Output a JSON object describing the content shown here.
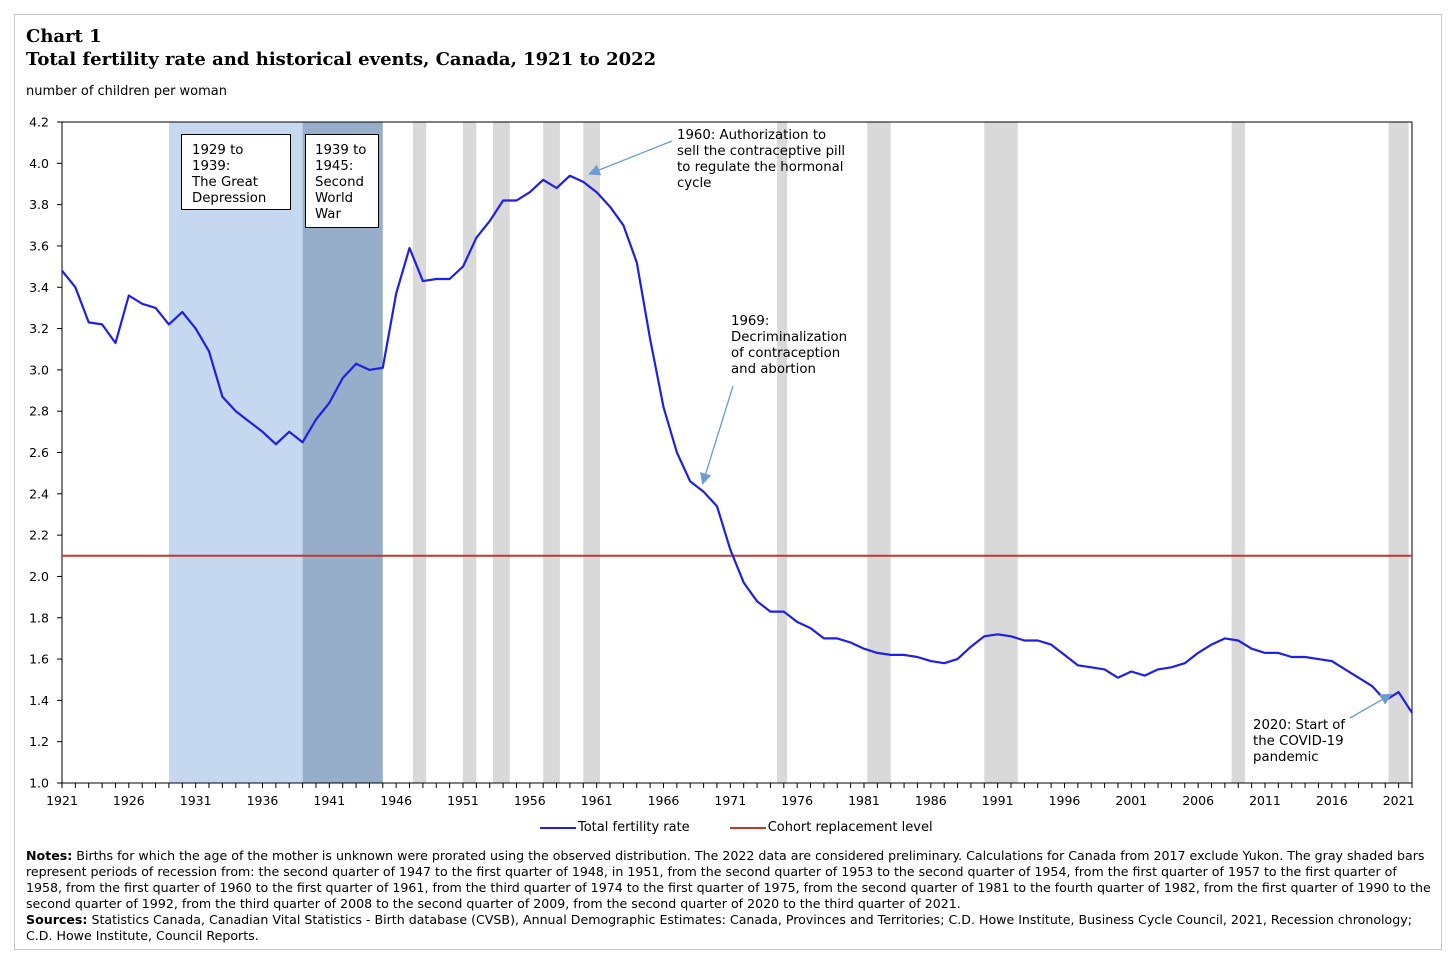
{
  "header": {
    "chart_label": "Chart 1",
    "title": "Total fertility rate and historical events, Canada, 1921 to 2022",
    "y_unit": "number of children per woman"
  },
  "legend": {
    "tfr_label": "Total fertility rate",
    "replacement_label": "Cohort replacement level"
  },
  "colors": {
    "tfr_line": "#1f1fe6",
    "replacement_line": "#c0392b",
    "depression_band": "#c6d8f0",
    "war_band": "#97aeca",
    "recession_bar": "#d9d9d9",
    "arrow": "#6f9ad2"
  },
  "annotations": {
    "depression": "1929 to\n1939:\nThe Great\nDepression",
    "war": "1939 to\n1945:\nSecond\nWorld\nWar",
    "pill": "1960: Authorization to\nsell the contraceptive pill\nto regulate the hormonal\ncycle",
    "decrim": "1969:\nDecriminalization\nof contraception\nand abortion",
    "covid": "2020: Start of\nthe COVID-19\npandemic"
  },
  "notes": {
    "notes_label": "Notes:",
    "notes_text": " Births for which the age of the mother is unknown were prorated using the observed distribution. The 2022 data are considered preliminary. Calculations for Canada from 2017 exclude Yukon. The gray shaded bars represent periods of recession from: the second quarter of 1947 to the first quarter of 1948, in 1951, from the second quarter of 1953 to the second quarter of 1954, from the first quarter of 1957 to the first quarter of 1958, from the first quarter of 1960 to the first quarter of 1961, from the third quarter of 1974 to the first quarter of 1975, from the second quarter of 1981 to the fourth quarter of 1982, from the first quarter of 1990 to the second quarter of 1992, from the third quarter of 2008 to the second quarter of 2009, from the second quarter of 2020 to the third quarter of 2021.",
    "sources_label": "Sources:",
    "sources_text": " Statistics Canada, Canadian Vital Statistics - Birth database (CVSB), Annual Demographic Estimates: Canada, Provinces and Territories; C.D. Howe Institute, Business Cycle Council, 2021, Recession chronology; C.D. Howe Institute, Council Reports."
  },
  "chart_data": {
    "type": "line",
    "title": "Total fertility rate and historical events, Canada, 1921 to 2022",
    "xlabel": "",
    "ylabel": "number of children per woman",
    "xlim": [
      1921,
      2022
    ],
    "ylim": [
      1.0,
      4.2
    ],
    "y_ticks": [
      1.0,
      1.2,
      1.4,
      1.6,
      1.8,
      2.0,
      2.2,
      2.4,
      2.6,
      2.8,
      3.0,
      3.2,
      3.4,
      3.6,
      3.8,
      4.0,
      4.2
    ],
    "y_tick_labels": [
      "1.0",
      "1.2",
      "1.4",
      "1.6",
      "1.8",
      "2.0",
      "2.2",
      "2.4",
      "2.6",
      "2.8",
      "3.0",
      "3.2",
      "3.4",
      "3.6",
      "3.8",
      "4.0",
      "4.2"
    ],
    "x_tick_labels": [
      "1921",
      "1926",
      "1931",
      "1936",
      "1941",
      "1946",
      "1951",
      "1956",
      "1961",
      "1966",
      "1971",
      "1976",
      "1981",
      "1986",
      "1991",
      "1996",
      "2001",
      "2006",
      "2011",
      "2016",
      "2021"
    ],
    "series": [
      {
        "name": "Total fertility rate",
        "x": [
          1921,
          1922,
          1923,
          1924,
          1925,
          1926,
          1927,
          1928,
          1929,
          1930,
          1931,
          1932,
          1933,
          1934,
          1935,
          1936,
          1937,
          1938,
          1939,
          1940,
          1941,
          1942,
          1943,
          1944,
          1945,
          1946,
          1947,
          1948,
          1949,
          1950,
          1951,
          1952,
          1953,
          1954,
          1955,
          1956,
          1957,
          1958,
          1959,
          1960,
          1961,
          1962,
          1963,
          1964,
          1965,
          1966,
          1967,
          1968,
          1969,
          1970,
          1971,
          1972,
          1973,
          1974,
          1975,
          1976,
          1977,
          1978,
          1979,
          1980,
          1981,
          1982,
          1983,
          1984,
          1985,
          1986,
          1987,
          1988,
          1989,
          1990,
          1991,
          1992,
          1993,
          1994,
          1995,
          1996,
          1997,
          1998,
          1999,
          2000,
          2001,
          2002,
          2003,
          2004,
          2005,
          2006,
          2007,
          2008,
          2009,
          2010,
          2011,
          2012,
          2013,
          2014,
          2015,
          2016,
          2017,
          2018,
          2019,
          2020,
          2021,
          2022
        ],
        "values": [
          3.48,
          3.4,
          3.23,
          3.22,
          3.13,
          3.36,
          3.32,
          3.3,
          3.22,
          3.28,
          3.2,
          3.09,
          2.87,
          2.8,
          2.75,
          2.7,
          2.64,
          2.7,
          2.65,
          2.76,
          2.84,
          2.96,
          3.03,
          3.0,
          3.01,
          3.37,
          3.59,
          3.43,
          3.44,
          3.44,
          3.5,
          3.64,
          3.72,
          3.82,
          3.82,
          3.86,
          3.92,
          3.88,
          3.94,
          3.91,
          3.86,
          3.79,
          3.7,
          3.52,
          3.15,
          2.82,
          2.6,
          2.46,
          2.41,
          2.34,
          2.13,
          1.97,
          1.88,
          1.83,
          1.83,
          1.78,
          1.75,
          1.7,
          1.7,
          1.68,
          1.65,
          1.63,
          1.62,
          1.62,
          1.61,
          1.59,
          1.58,
          1.6,
          1.66,
          1.71,
          1.72,
          1.71,
          1.69,
          1.69,
          1.67,
          1.62,
          1.57,
          1.56,
          1.55,
          1.51,
          1.54,
          1.52,
          1.55,
          1.56,
          1.58,
          1.63,
          1.67,
          1.7,
          1.69,
          1.65,
          1.63,
          1.63,
          1.61,
          1.61,
          1.6,
          1.59,
          1.55,
          1.51,
          1.47,
          1.4,
          1.44,
          1.34
        ]
      },
      {
        "name": "Cohort replacement level",
        "x": [
          1921,
          2022
        ],
        "values": [
          2.1,
          2.1
        ]
      }
    ],
    "bands": [
      {
        "name": "The Great Depression",
        "start": 1929,
        "end": 1939
      },
      {
        "name": "Second World War",
        "start": 1939,
        "end": 1945
      }
    ],
    "recessions": [
      {
        "start": 1947.25,
        "end": 1948.25
      },
      {
        "start": 1951.0,
        "end": 1952.0
      },
      {
        "start": 1953.25,
        "end": 1954.5
      },
      {
        "start": 1957.0,
        "end": 1958.25
      },
      {
        "start": 1960.0,
        "end": 1961.25
      },
      {
        "start": 1974.5,
        "end": 1975.25
      },
      {
        "start": 1981.25,
        "end": 1983.0
      },
      {
        "start": 1990.0,
        "end": 1992.5
      },
      {
        "start": 2008.5,
        "end": 2009.5
      },
      {
        "start": 2020.25,
        "end": 2021.75
      }
    ]
  }
}
